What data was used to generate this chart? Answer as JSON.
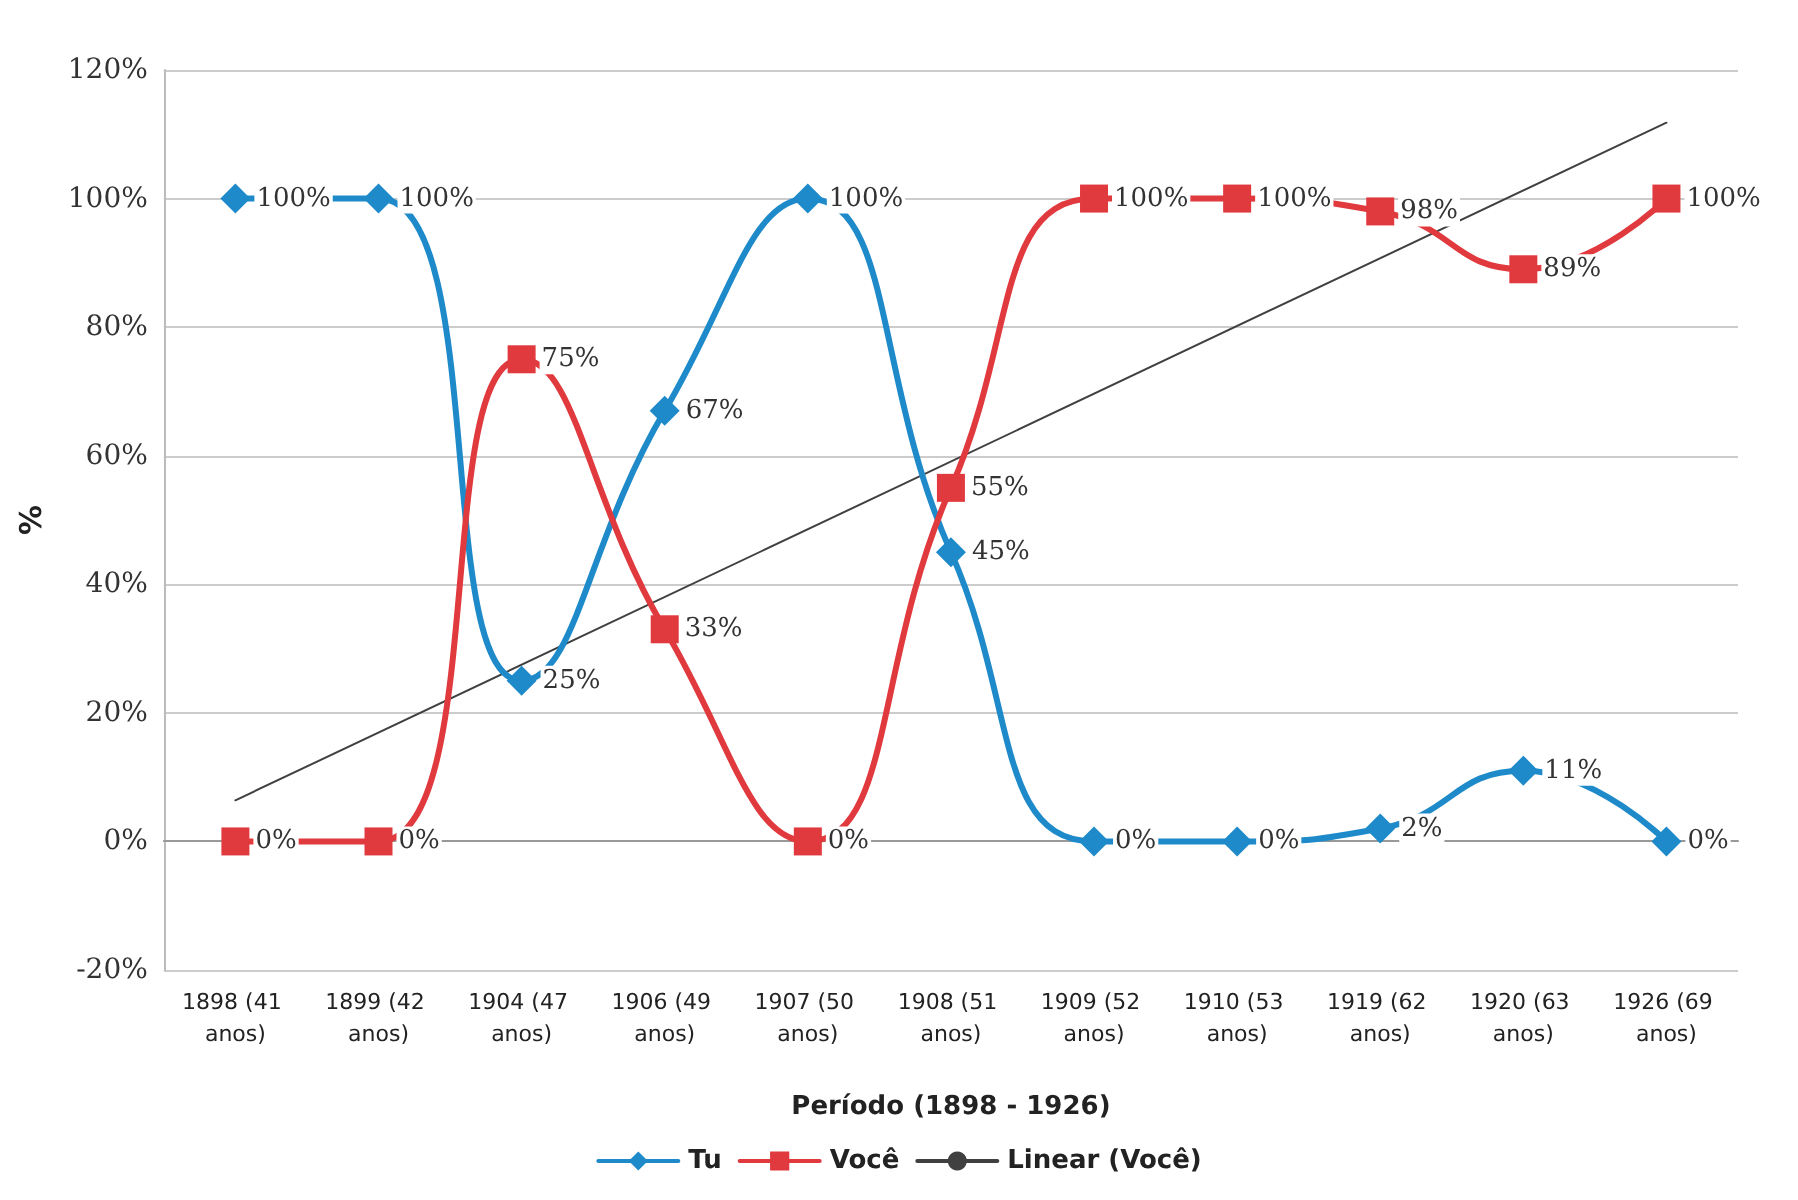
{
  "chart_data": {
    "type": "line",
    "xlabel": "Período (1898 - 1926)",
    "ylabel": "%",
    "categories": [
      "1898 (41 anos)",
      "1899 (42 anos)",
      "1904 (47 anos)",
      "1906 (49 anos)",
      "1907 (50 anos)",
      "1908 (51 anos)",
      "1909 (52 anos)",
      "1910 (53 anos)",
      "1919 (62 anos)",
      "1920 (63 anos)",
      "1926 (69 anos)"
    ],
    "series": [
      {
        "name": "Tu",
        "color": "#1f8ac9",
        "marker": "diamond",
        "values": [
          100,
          100,
          25,
          67,
          100,
          45,
          0,
          0,
          2,
          11,
          0
        ],
        "value_labels": [
          "100%",
          "100%",
          "25%",
          "67%",
          "100%",
          "45%",
          "0%",
          "0%",
          "2%",
          "11%",
          "0%"
        ]
      },
      {
        "name": "Você",
        "color": "#e0393e",
        "marker": "square",
        "values": [
          0,
          0,
          75,
          33,
          0,
          55,
          100,
          100,
          98,
          89,
          100
        ],
        "value_labels": [
          "0%",
          "0%",
          "75%",
          "33%",
          "0%",
          "55%",
          "100%",
          "100%",
          "98%",
          "89%",
          "100%"
        ]
      },
      {
        "name": "Linear (Você)",
        "color": "#404040",
        "marker": "none",
        "x": [
          "1898 (41 anos)",
          "1926 (69 anos)"
        ],
        "values": [
          6.4,
          111.8
        ]
      }
    ],
    "ylim": [
      -20,
      120
    ],
    "yticks": [
      {
        "value": -20,
        "label": "-20%"
      },
      {
        "value": 0,
        "label": "0%"
      },
      {
        "value": 20,
        "label": "20%"
      },
      {
        "value": 40,
        "label": "40%"
      },
      {
        "value": 60,
        "label": "60%"
      },
      {
        "value": 80,
        "label": "80%"
      },
      {
        "value": 100,
        "label": "100%"
      },
      {
        "value": 120,
        "label": "120%"
      }
    ],
    "grid": "y",
    "legend": "bottom",
    "line_style": "solid"
  }
}
